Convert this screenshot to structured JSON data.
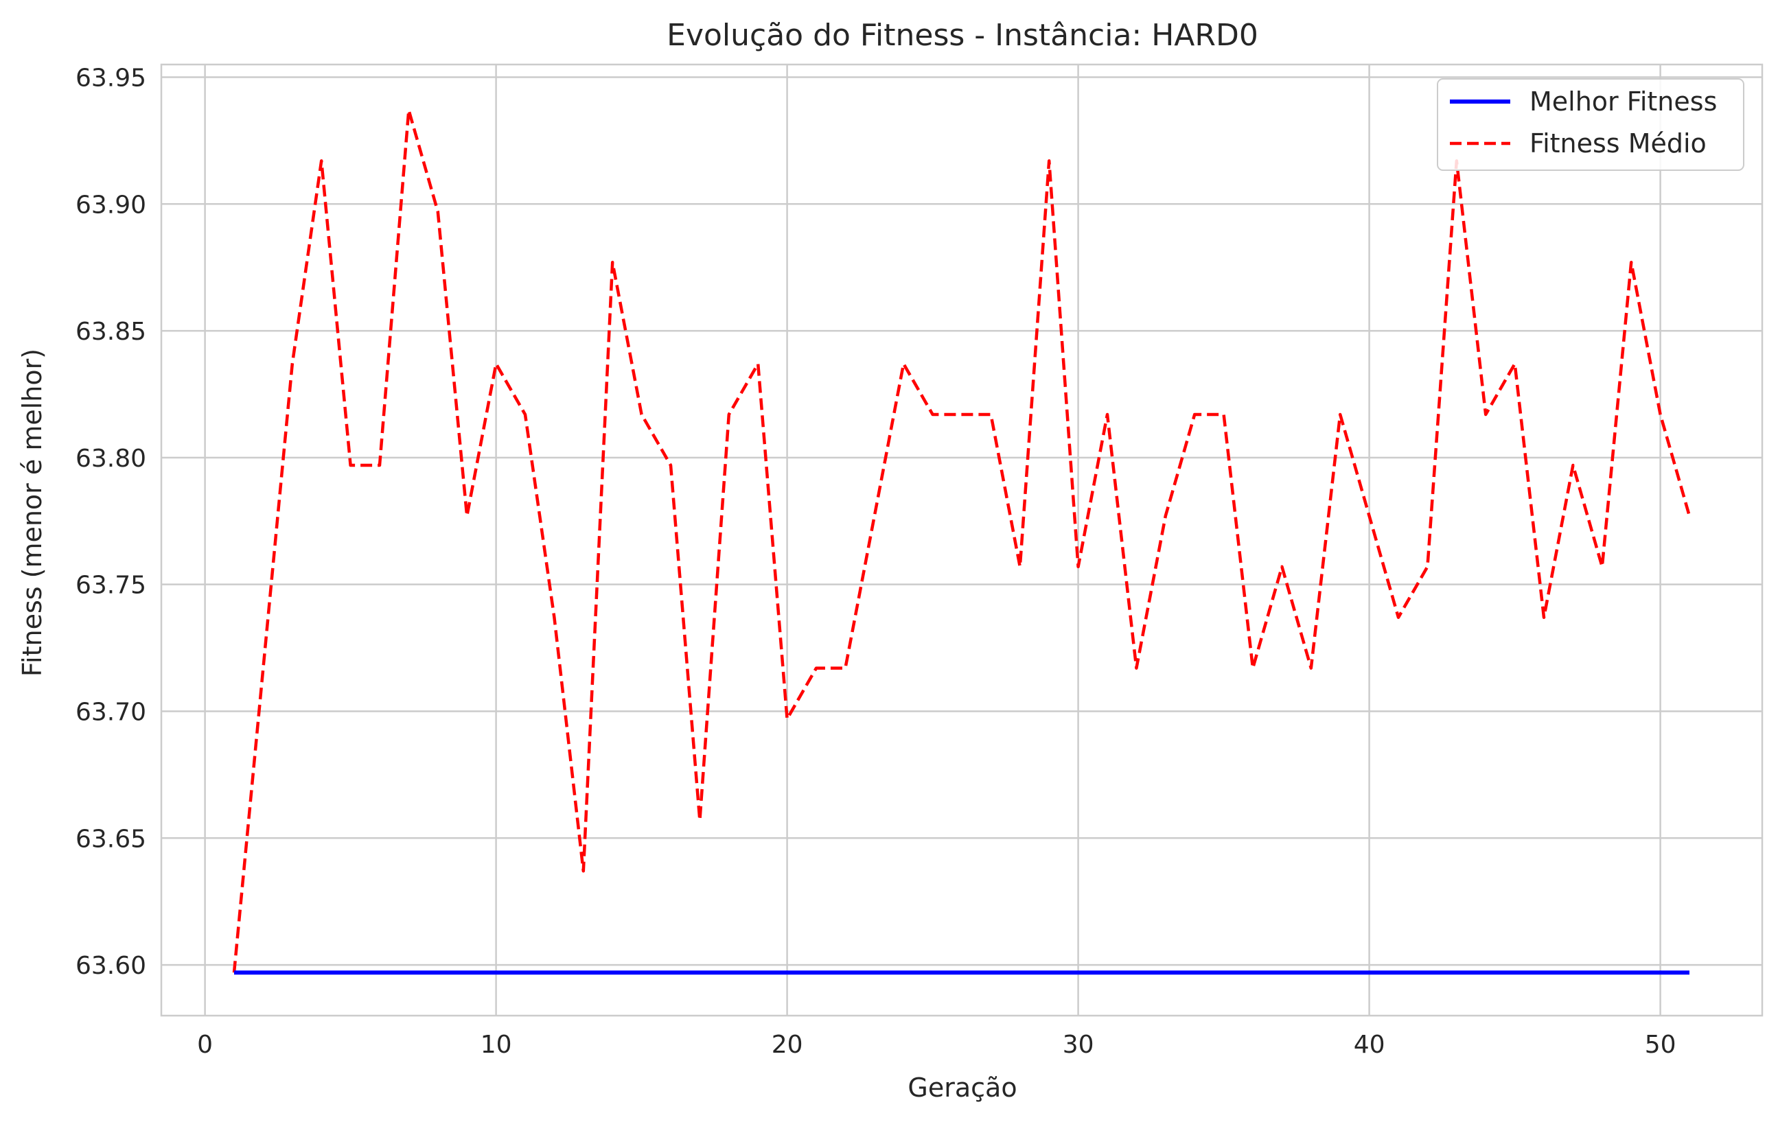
{
  "chart_data": {
    "type": "line",
    "title": "Evolução do Fitness - Instância: HARD0",
    "xlabel": "Geração",
    "ylabel": "Fitness (menor é melhor)",
    "xlim": [
      -1.5,
      53.5
    ],
    "ylim": [
      63.58,
      63.955
    ],
    "xticks": [
      0,
      10,
      20,
      30,
      40,
      50
    ],
    "xtick_labels": [
      "0",
      "10",
      "20",
      "30",
      "40",
      "50"
    ],
    "yticks": [
      63.6,
      63.65,
      63.7,
      63.75,
      63.8,
      63.85,
      63.9,
      63.95
    ],
    "ytick_labels": [
      "63.60",
      "63.65",
      "63.70",
      "63.75",
      "63.80",
      "63.85",
      "63.90",
      "63.95"
    ],
    "grid": true,
    "legend_position": "top-right",
    "x": [
      1,
      2,
      3,
      4,
      5,
      6,
      7,
      8,
      9,
      10,
      11,
      12,
      13,
      14,
      15,
      16,
      17,
      18,
      19,
      20,
      21,
      22,
      23,
      24,
      25,
      26,
      27,
      28,
      29,
      30,
      31,
      32,
      33,
      34,
      35,
      36,
      37,
      38,
      39,
      40,
      41,
      42,
      43,
      44,
      45,
      46,
      47,
      48,
      49,
      50,
      51
    ],
    "series": [
      {
        "name": "Melhor Fitness",
        "color": "#0000ff",
        "style": "solid",
        "values": [
          63.597,
          63.597,
          63.597,
          63.597,
          63.597,
          63.597,
          63.597,
          63.597,
          63.597,
          63.597,
          63.597,
          63.597,
          63.597,
          63.597,
          63.597,
          63.597,
          63.597,
          63.597,
          63.597,
          63.597,
          63.597,
          63.597,
          63.597,
          63.597,
          63.597,
          63.597,
          63.597,
          63.597,
          63.597,
          63.597,
          63.597,
          63.597,
          63.597,
          63.597,
          63.597,
          63.597,
          63.597,
          63.597,
          63.597,
          63.597,
          63.597,
          63.597,
          63.597,
          63.597,
          63.597,
          63.597,
          63.597,
          63.597,
          63.597,
          63.597,
          63.597
        ]
      },
      {
        "name": "Fitness Médio",
        "color": "#ff0000",
        "style": "dashed",
        "values": [
          63.597,
          63.717,
          63.837,
          63.917,
          63.797,
          63.797,
          63.937,
          63.897,
          63.777,
          63.837,
          63.817,
          63.737,
          63.637,
          63.877,
          63.817,
          63.797,
          63.657,
          63.817,
          63.837,
          63.697,
          63.717,
          63.717,
          63.777,
          63.837,
          63.817,
          63.817,
          63.817,
          63.757,
          63.917,
          63.757,
          63.817,
          63.717,
          63.777,
          63.817,
          63.817,
          63.717,
          63.757,
          63.717,
          63.817,
          63.777,
          63.737,
          63.757,
          63.917,
          63.817,
          63.837,
          63.737,
          63.797,
          63.757,
          63.877,
          63.817,
          63.777
        ]
      }
    ]
  }
}
